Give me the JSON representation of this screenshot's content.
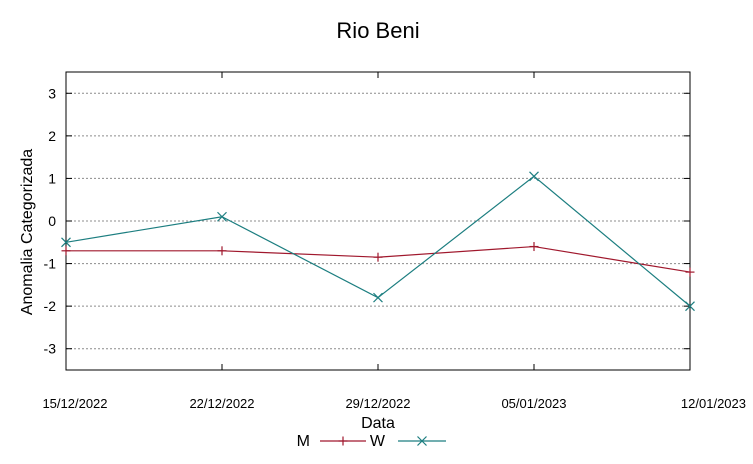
{
  "chart_data": {
    "type": "line",
    "title": "Rio Beni",
    "xlabel": "Data",
    "ylabel": "Anomalia Categorizada",
    "categories": [
      "15/12/2022",
      "22/12/2022",
      "29/12/2022",
      "05/01/2023",
      "12/01/2023"
    ],
    "yticks": [
      "3",
      "2",
      "1",
      "0",
      "-1",
      "-2",
      "-3"
    ],
    "ylim": [
      -3.5,
      3.5
    ],
    "grid": true,
    "legend_position": "bottom",
    "series": [
      {
        "name": "M",
        "values": [
          -0.7,
          -0.7,
          -0.85,
          -0.6,
          -1.2
        ],
        "color": "#a0182d",
        "marker": "plus"
      },
      {
        "name": "W",
        "values": [
          -0.5,
          0.1,
          -1.8,
          1.05,
          -2.0
        ],
        "color": "#1c7e80",
        "marker": "cross"
      }
    ]
  }
}
